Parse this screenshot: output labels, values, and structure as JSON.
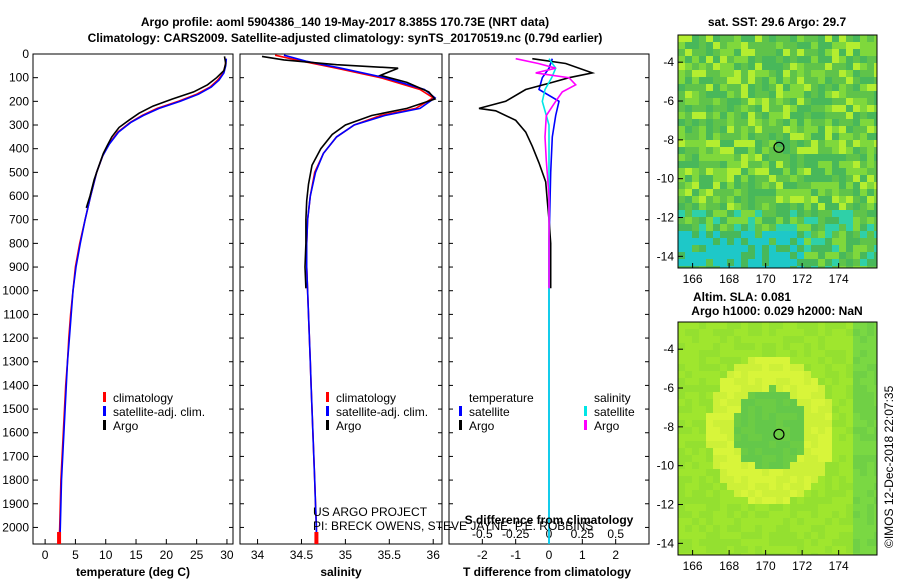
{
  "header": {
    "title_line1": "Argo profile: aoml 5904386_140 19-May-2017 8.385S 170.73E (NRT data)",
    "title_line2": "Climatology: CARS2009. Satellite-adjusted climatology: synTS_20170519.nc (0.79d earlier)"
  },
  "credits": {
    "project": "US ARGO PROJECT",
    "pis": "PI: BRECK OWENS, STEVE JAYNE, P.E. ROBBINS",
    "imos": "©IMOS 12-Dec-2018 22:07:35"
  },
  "colors": {
    "climatology": "#ff0000",
    "satellite": "#0000ff",
    "argo": "#000000",
    "sat_salinity": "#00e6e6",
    "argo_salinity": "#ff00ff"
  },
  "chart_data": [
    {
      "type": "line",
      "xlabel": "temperature (deg C)",
      "ylabel": "",
      "xlim": [
        -2,
        31
      ],
      "ylim": [
        2070,
        0
      ],
      "xticks": [
        0,
        5,
        10,
        15,
        20,
        25,
        30
      ],
      "yticks": [
        0,
        100,
        200,
        300,
        400,
        500,
        600,
        700,
        800,
        900,
        1000,
        1100,
        1200,
        1300,
        1400,
        1500,
        1600,
        1700,
        1800,
        1900,
        2000
      ],
      "legend": [
        "climatology",
        "satellite-adj. clim.",
        "Argo"
      ],
      "series": [
        {
          "name": "climatology",
          "points": [
            [
              29.9,
              20
            ],
            [
              29.7,
              50
            ],
            [
              29.4,
              80
            ],
            [
              28.5,
              110
            ],
            [
              27.2,
              140
            ],
            [
              25.0,
              170
            ],
            [
              22.0,
              200
            ],
            [
              18.5,
              230
            ],
            [
              16.0,
              260
            ],
            [
              14.0,
              290
            ],
            [
              12.0,
              330
            ],
            [
              10.5,
              380
            ],
            [
              9.5,
              430
            ],
            [
              8.5,
              500
            ],
            [
              7.5,
              600
            ],
            [
              6.6,
              700
            ],
            [
              5.7,
              800
            ],
            [
              5.0,
              900
            ],
            [
              4.6,
              1000
            ],
            [
              4.2,
              1100
            ],
            [
              3.9,
              1200
            ],
            [
              3.7,
              1300
            ],
            [
              3.4,
              1400
            ],
            [
              3.2,
              1500
            ],
            [
              3.0,
              1600
            ],
            [
              2.8,
              1700
            ],
            [
              2.6,
              1800
            ],
            [
              2.5,
              1900
            ],
            [
              2.4,
              2000
            ],
            [
              2.3,
              2070
            ]
          ]
        },
        {
          "name": "satellite-adj. clim.",
          "points": [
            [
              29.9,
              20
            ],
            [
              29.8,
              50
            ],
            [
              29.5,
              80
            ],
            [
              28.7,
              110
            ],
            [
              27.4,
              140
            ],
            [
              25.3,
              170
            ],
            [
              22.3,
              200
            ],
            [
              18.8,
              230
            ],
            [
              16.2,
              260
            ],
            [
              14.1,
              290
            ],
            [
              12.1,
              330
            ],
            [
              10.6,
              380
            ],
            [
              9.5,
              430
            ],
            [
              8.5,
              500
            ],
            [
              7.5,
              600
            ],
            [
              6.6,
              700
            ],
            [
              5.8,
              800
            ],
            [
              5.1,
              900
            ],
            [
              4.6,
              1000
            ],
            [
              4.3,
              1100
            ],
            [
              4.0,
              1200
            ],
            [
              3.7,
              1300
            ],
            [
              3.5,
              1400
            ],
            [
              3.3,
              1500
            ],
            [
              3.1,
              1600
            ],
            [
              2.9,
              1700
            ],
            [
              2.7,
              1800
            ],
            [
              2.6,
              1900
            ],
            [
              2.5,
              2000
            ],
            [
              2.4,
              2070
            ]
          ]
        },
        {
          "name": "Argo",
          "points": [
            [
              29.6,
              10
            ],
            [
              29.8,
              40
            ],
            [
              29.5,
              70
            ],
            [
              28.3,
              100
            ],
            [
              26.8,
              130
            ],
            [
              24.5,
              160
            ],
            [
              21.0,
              190
            ],
            [
              17.8,
              220
            ],
            [
              15.5,
              250
            ],
            [
              13.8,
              280
            ],
            [
              12.2,
              310
            ],
            [
              11.0,
              350
            ],
            [
              10.2,
              390
            ],
            [
              9.6,
              420
            ],
            [
              8.9,
              470
            ],
            [
              8.1,
              530
            ],
            [
              7.4,
              600
            ],
            [
              6.8,
              650
            ]
          ]
        }
      ]
    },
    {
      "type": "line",
      "xlabel": "salinity",
      "ylabel": "",
      "xlim": [
        33.8,
        36.1
      ],
      "ylim": [
        2070,
        0
      ],
      "xticks": [
        34,
        34.5,
        35,
        35.5,
        36
      ],
      "legend": [
        "climatology",
        "satellite-adj. clim.",
        "Argo"
      ],
      "series": [
        {
          "name": "climatology",
          "points": [
            [
              34.2,
              5
            ],
            [
              34.5,
              30
            ],
            [
              34.9,
              60
            ],
            [
              35.4,
              100
            ],
            [
              35.85,
              150
            ],
            [
              36.0,
              185
            ],
            [
              35.8,
              230
            ],
            [
              35.4,
              260
            ],
            [
              35.1,
              300
            ],
            [
              34.9,
              350
            ],
            [
              34.75,
              420
            ],
            [
              34.65,
              500
            ],
            [
              34.6,
              600
            ],
            [
              34.57,
              700
            ],
            [
              34.56,
              800
            ],
            [
              34.56,
              900
            ],
            [
              34.57,
              1000
            ],
            [
              34.58,
              1100
            ],
            [
              34.59,
              1200
            ],
            [
              34.6,
              1300
            ],
            [
              34.61,
              1400
            ],
            [
              34.62,
              1500
            ],
            [
              34.63,
              1600
            ],
            [
              34.64,
              1700
            ],
            [
              34.65,
              1800
            ],
            [
              34.66,
              1900
            ],
            [
              34.67,
              2000
            ],
            [
              34.67,
              2070
            ]
          ]
        },
        {
          "name": "satellite-adj. clim.",
          "points": [
            [
              34.3,
              5
            ],
            [
              34.55,
              30
            ],
            [
              34.95,
              60
            ],
            [
              35.45,
              100
            ],
            [
              35.9,
              150
            ],
            [
              36.02,
              185
            ],
            [
              35.85,
              230
            ],
            [
              35.45,
              260
            ],
            [
              35.1,
              300
            ],
            [
              34.9,
              350
            ],
            [
              34.75,
              420
            ],
            [
              34.66,
              500
            ],
            [
              34.6,
              600
            ],
            [
              34.57,
              700
            ],
            [
              34.56,
              800
            ],
            [
              34.56,
              900
            ],
            [
              34.57,
              1000
            ],
            [
              34.58,
              1100
            ],
            [
              34.59,
              1200
            ],
            [
              34.6,
              1300
            ],
            [
              34.61,
              1400
            ],
            [
              34.62,
              1500
            ],
            [
              34.63,
              1600
            ],
            [
              34.64,
              1700
            ],
            [
              34.65,
              1800
            ],
            [
              34.66,
              1900
            ],
            [
              34.67,
              2000
            ],
            [
              34.67,
              2070
            ]
          ]
        },
        {
          "name": "Argo",
          "points": [
            [
              34.05,
              10
            ],
            [
              34.3,
              25
            ],
            [
              34.9,
              45
            ],
            [
              35.6,
              60
            ],
            [
              35.4,
              90
            ],
            [
              35.7,
              120
            ],
            [
              35.95,
              160
            ],
            [
              36.02,
              190
            ],
            [
              35.7,
              230
            ],
            [
              35.3,
              260
            ],
            [
              35.0,
              300
            ],
            [
              34.85,
              340
            ],
            [
              34.72,
              400
            ],
            [
              34.62,
              470
            ],
            [
              34.58,
              550
            ],
            [
              34.56,
              620
            ],
            [
              34.55,
              700
            ],
            [
              34.55,
              800
            ],
            [
              34.54,
              900
            ],
            [
              34.55,
              990
            ]
          ]
        }
      ]
    },
    {
      "type": "line",
      "xlabel": "T difference from climatology",
      "x2label": "S difference from climatology",
      "ylabel": "",
      "xlim": [
        -3,
        3
      ],
      "ylim": [
        2070,
        0
      ],
      "xticks": [
        -2,
        -1,
        0,
        1,
        2
      ],
      "x2lim": [
        -0.75,
        0.75
      ],
      "x2ticks": [
        -0.5,
        -0.25,
        0,
        0.25,
        0.5
      ],
      "legend_temperature": {
        "heading": "temperature",
        "items": [
          "satellite",
          "Argo"
        ]
      },
      "legend_salinity": {
        "heading": "salinity",
        "items": [
          "satellite",
          "Argo"
        ]
      },
      "series": [
        {
          "name": "satellite",
          "axis": "T",
          "points": [
            [
              0.1,
              20
            ],
            [
              0.0,
              60
            ],
            [
              -0.2,
              100
            ],
            [
              -0.3,
              150
            ],
            [
              0.3,
              200
            ],
            [
              0.2,
              260
            ],
            [
              0.1,
              350
            ],
            [
              0.05,
              500
            ],
            [
              0.0,
              800
            ],
            [
              0.0,
              1200
            ],
            [
              0.0,
              1600
            ],
            [
              0.0,
              2070
            ]
          ]
        },
        {
          "name": "Argo",
          "axis": "T",
          "points": [
            [
              -0.5,
              20
            ],
            [
              0.5,
              40
            ],
            [
              1.3,
              80
            ],
            [
              0.6,
              100
            ],
            [
              0.1,
              120
            ],
            [
              -0.7,
              150
            ],
            [
              -1.3,
              200
            ],
            [
              -2.1,
              230
            ],
            [
              -1.6,
              240
            ],
            [
              -1.0,
              280
            ],
            [
              -0.7,
              330
            ],
            [
              -0.5,
              390
            ],
            [
              -0.3,
              460
            ],
            [
              -0.1,
              540
            ],
            [
              -0.05,
              620
            ],
            [
              0.0,
              700
            ],
            [
              0.05,
              800
            ],
            [
              0.05,
              990
            ]
          ]
        },
        {
          "name": "satellite",
          "axis": "S",
          "points": [
            [
              0.0,
              20
            ],
            [
              0.05,
              60
            ],
            [
              0.02,
              100
            ],
            [
              -0.03,
              150
            ],
            [
              -0.05,
              200
            ],
            [
              0.0,
              300
            ],
            [
              0.0,
              500
            ],
            [
              0.0,
              1000
            ],
            [
              0.0,
              1500
            ],
            [
              0.0,
              2070
            ]
          ]
        },
        {
          "name": "Argo",
          "axis": "S",
          "points": [
            [
              -0.25,
              20
            ],
            [
              -0.08,
              40
            ],
            [
              0.05,
              60
            ],
            [
              -0.1,
              80
            ],
            [
              0.15,
              100
            ],
            [
              0.2,
              130
            ],
            [
              0.1,
              160
            ],
            [
              0.05,
              200
            ],
            [
              -0.02,
              260
            ],
            [
              -0.03,
              350
            ],
            [
              -0.02,
              450
            ],
            [
              0.0,
              600
            ],
            [
              0.0,
              800
            ],
            [
              0.0,
              990
            ]
          ]
        }
      ]
    },
    {
      "type": "heatmap",
      "title": "sat. SST: 29.6 Argo: 29.7",
      "xticks": [
        166,
        168,
        170,
        172,
        174
      ],
      "yticks": [
        -4,
        -6,
        -8,
        -10,
        -12,
        -14
      ],
      "xlim": [
        165.2,
        176.1
      ],
      "ylim": [
        -14.6,
        -2.6
      ],
      "marker": {
        "lon": 170.73,
        "lat": -8.385
      }
    },
    {
      "type": "heatmap",
      "title": "Altim. SLA: 0.081",
      "subtitle": "Argo h1000: 0.029 h2000: NaN",
      "xticks": [
        166,
        168,
        170,
        172,
        174
      ],
      "yticks": [
        -4,
        -6,
        -8,
        -10,
        -12,
        -14
      ],
      "xlim": [
        165.2,
        176.1
      ],
      "ylim": [
        -14.6,
        -2.6
      ],
      "marker": {
        "lon": 170.73,
        "lat": -8.385
      }
    }
  ]
}
